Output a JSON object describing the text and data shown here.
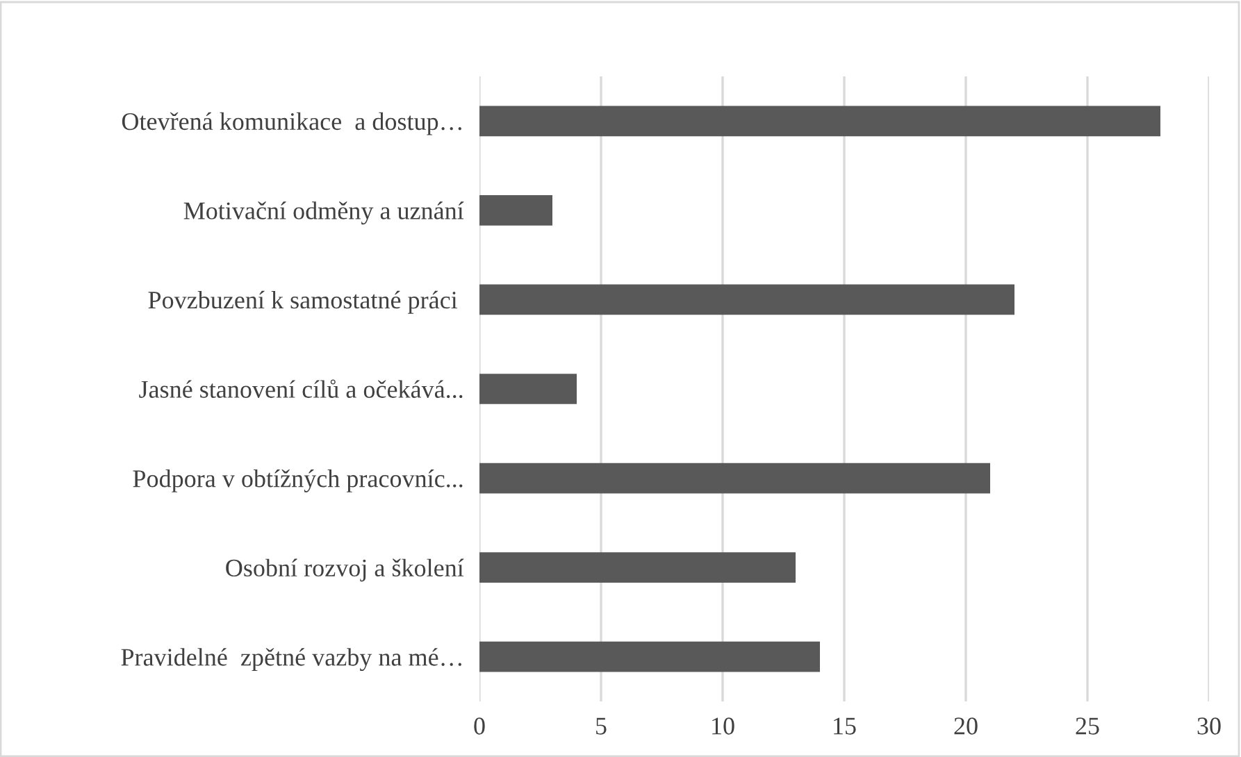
{
  "chart_data": {
    "type": "bar",
    "orientation": "horizontal",
    "categories": [
      "Otevřená komunikace  a dostup…",
      "Motivační odměny a uznání",
      "Povzbuzení k samostatné práci ",
      "Jasné stanovení cílů a očekává...",
      "Podpora v obtížných pracovníc...",
      "Osobní rozvoj a školení",
      "Pravidelné  zpětné vazby na mé…"
    ],
    "values": [
      28,
      3,
      22,
      4,
      21,
      13,
      14
    ],
    "color": "#595959",
    "xlim": [
      0,
      30
    ],
    "xticks": [
      0,
      5,
      10,
      15,
      20,
      25,
      30
    ],
    "grid": "x"
  }
}
